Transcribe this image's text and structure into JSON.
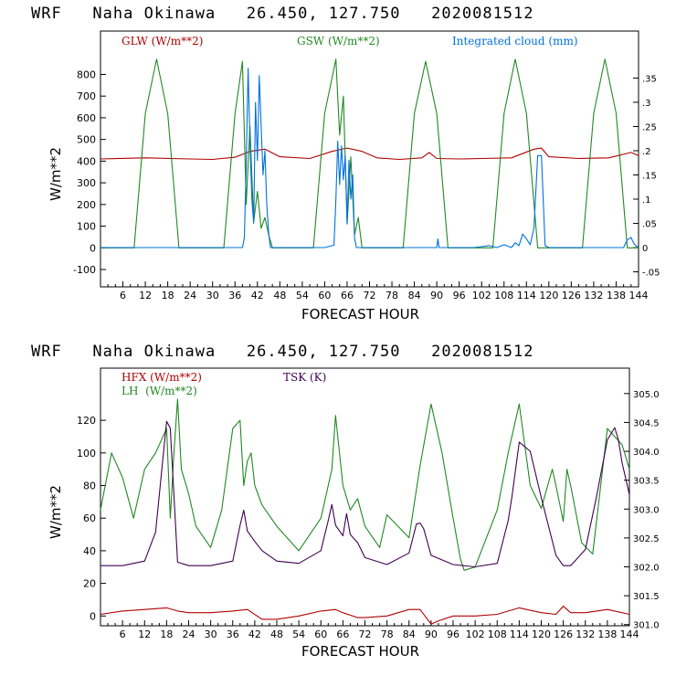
{
  "chart_data": [
    {
      "type": "line",
      "title": "WRF   Naha Okinawa   26.450, 127.750   2020081512",
      "xlabel": "FORECAST HOUR",
      "ylabel": "W/m**2",
      "xlim": [
        0,
        144
      ],
      "ylim": [
        -180,
        1000
      ],
      "y2lim": [
        -0.081,
        0.447
      ],
      "x_ticks": [
        6,
        12,
        18,
        24,
        30,
        36,
        42,
        48,
        54,
        60,
        66,
        72,
        78,
        84,
        90,
        96,
        102,
        108,
        114,
        120,
        126,
        132,
        138,
        144
      ],
      "y_ticks": [
        -100,
        0,
        100,
        200,
        300,
        400,
        500,
        600,
        700,
        800
      ],
      "y2_ticks": [
        -0.05,
        0,
        0.05,
        0.1,
        0.15,
        0.2,
        0.25,
        0.3,
        0.35
      ],
      "y2_tick_labels": [
        "-.05",
        "0",
        ".05",
        ".1",
        ".15",
        ".2",
        ".25",
        ".3",
        ".35"
      ],
      "series": [
        {
          "name": "GLW (W/m**2)",
          "color": "#b00000",
          "axis": "left",
          "x": [
            0,
            12,
            24,
            30,
            36,
            40,
            44,
            48,
            56,
            62,
            66,
            70,
            74,
            80,
            86,
            88,
            90,
            96,
            102,
            110,
            116,
            118,
            120,
            128,
            136,
            142,
            144
          ],
          "y": [
            410,
            415,
            410,
            408,
            418,
            445,
            455,
            420,
            412,
            445,
            460,
            445,
            415,
            408,
            415,
            440,
            412,
            410,
            412,
            415,
            455,
            460,
            420,
            412,
            415,
            440,
            425
          ]
        },
        {
          "name": "GSW (W/m**2)",
          "color": "#228822",
          "axis": "left",
          "x": [
            0,
            9,
            12,
            15,
            18,
            21,
            22,
            33,
            36,
            38,
            39,
            40,
            41,
            42,
            43,
            44,
            45,
            46,
            57,
            60,
            63,
            64,
            65,
            66,
            67,
            68,
            69,
            70,
            81,
            84,
            87,
            90,
            93,
            94,
            105,
            108,
            111,
            114,
            117,
            118,
            129,
            132,
            135,
            138,
            141,
            142,
            144
          ],
          "y": [
            0,
            0,
            620,
            870,
            620,
            0,
            0,
            0,
            620,
            860,
            200,
            560,
            120,
            260,
            90,
            140,
            60,
            0,
            0,
            620,
            870,
            520,
            700,
            110,
            420,
            60,
            140,
            0,
            0,
            620,
            860,
            620,
            0,
            0,
            0,
            620,
            870,
            620,
            0,
            0,
            0,
            620,
            870,
            620,
            0,
            0,
            0
          ]
        },
        {
          "name": "Integrated cloud (mm)",
          "color": "#0070dd",
          "axis": "right",
          "x": [
            0,
            38,
            38.5,
            39,
            39.5,
            40,
            40.5,
            41,
            41.5,
            42,
            42.5,
            43,
            43.5,
            44,
            44.5,
            45,
            45.5,
            60,
            62.5,
            63,
            63.5,
            64,
            64.5,
            65,
            65.5,
            66,
            66.5,
            67,
            67.5,
            68,
            68.5,
            90,
            90.3,
            90.6,
            100,
            104,
            106,
            108,
            110,
            111,
            112,
            113,
            114,
            115,
            116,
            117,
            118,
            119,
            120,
            140,
            141,
            142,
            142.5,
            143,
            144
          ],
          "y": [
            0,
            0,
            0.02,
            0.17,
            0.37,
            0.22,
            0.1,
            0.05,
            0.3,
            0.18,
            0.355,
            0.25,
            0.15,
            0.2,
            0.09,
            0.03,
            0,
            0,
            0.005,
            0.1,
            0.22,
            0.13,
            0.21,
            0.14,
            0.19,
            0.05,
            0.18,
            0.1,
            0.15,
            0.02,
            0,
            0,
            0.018,
            0,
            0,
            0.004,
            0,
            0.006,
            0,
            0.01,
            0.004,
            0.028,
            0.018,
            0.006,
            0.04,
            0.19,
            0.19,
            0.004,
            0,
            0,
            0.016,
            0.021,
            0.012,
            0.006,
            0
          ]
        }
      ],
      "legend": "top"
    },
    {
      "type": "line",
      "title": "WRF   Naha Okinawa   26.450, 127.750   2020081512",
      "xlabel": "FORECAST HOUR",
      "ylabel": "W/m**2",
      "xlim": [
        0,
        144
      ],
      "ylim": [
        -6,
        152
      ],
      "y2lim": [
        300.98,
        305.44
      ],
      "x_ticks": [
        6,
        12,
        18,
        24,
        30,
        36,
        42,
        48,
        54,
        60,
        66,
        72,
        78,
        84,
        90,
        96,
        102,
        108,
        114,
        120,
        126,
        132,
        138,
        144
      ],
      "y_ticks": [
        0,
        20,
        40,
        60,
        80,
        100,
        120
      ],
      "y2_ticks": [
        301.0,
        301.5,
        302.0,
        302.5,
        303.0,
        303.5,
        304.0,
        304.5,
        305.0
      ],
      "y2_tick_labels": [
        "301.0",
        "301.5",
        "302.0",
        "302.5",
        "303.0",
        "303.5",
        "304.0",
        "304.5",
        "305.0"
      ],
      "series": [
        {
          "name": "HFX (W/m**2)",
          "color": "#b00000",
          "axis": "left",
          "x": [
            0,
            6,
            12,
            18,
            21,
            24,
            30,
            36,
            40,
            44,
            48,
            54,
            60,
            64,
            66,
            70,
            72,
            78,
            84,
            87,
            90,
            92,
            96,
            102,
            108,
            114,
            118,
            120,
            124,
            126,
            128,
            132,
            138,
            144
          ],
          "y": [
            1,
            3,
            4,
            5,
            3,
            2,
            2,
            3,
            4,
            -2,
            -2,
            0,
            3,
            4,
            2,
            -1,
            -1,
            0,
            4,
            4,
            -5,
            -3,
            0,
            0,
            1,
            5,
            3,
            2,
            1,
            6,
            2,
            2,
            4,
            1
          ]
        },
        {
          "name": "LH  (W/m**2)",
          "color": "#228822",
          "axis": "left",
          "x": [
            0,
            3,
            6,
            9,
            12,
            15,
            18,
            19,
            20,
            21,
            22,
            24,
            26,
            30,
            33,
            36,
            38,
            39,
            40,
            41,
            42,
            44,
            48,
            54,
            57,
            60,
            63,
            64,
            66,
            68,
            70,
            72,
            76,
            78,
            84,
            87,
            90,
            93,
            96,
            98,
            99,
            102,
            108,
            111,
            114,
            117,
            120,
            123,
            124,
            126,
            127,
            128,
            131,
            134,
            138,
            142,
            144
          ],
          "y": [
            65,
            100,
            85,
            60,
            90,
            100,
            115,
            60,
            100,
            133,
            90,
            75,
            55,
            42,
            65,
            115,
            120,
            80,
            95,
            100,
            80,
            68,
            55,
            40,
            50,
            60,
            90,
            123,
            80,
            65,
            72,
            55,
            42,
            62,
            48,
            92,
            130,
            100,
            60,
            35,
            28,
            30,
            65,
            100,
            130,
            80,
            66,
            90,
            80,
            58,
            90,
            80,
            45,
            38,
            115,
            105,
            90
          ]
        },
        {
          "name": "TSK (K)",
          "color": "#400050",
          "axis": "right",
          "x": [
            0,
            6,
            12,
            15,
            18,
            19,
            21,
            24,
            30,
            36,
            38,
            39,
            40,
            42,
            44,
            48,
            54,
            60,
            62,
            63,
            64,
            66,
            67,
            68,
            70,
            72,
            78,
            84,
            86,
            87,
            88,
            90,
            96,
            102,
            108,
            111,
            112,
            114,
            117,
            120,
            124,
            126,
            128,
            132,
            135,
            138,
            140,
            141,
            142,
            144
          ],
          "y": [
            302.02,
            302.02,
            302.1,
            302.6,
            304.52,
            304.4,
            302.08,
            302.02,
            302.02,
            302.1,
            302.72,
            302.98,
            302.62,
            302.44,
            302.28,
            302.1,
            302.06,
            302.28,
            302.8,
            303.08,
            302.72,
            302.54,
            302.92,
            302.56,
            302.42,
            302.16,
            302.04,
            302.24,
            302.74,
            302.76,
            302.66,
            302.2,
            302.04,
            302.0,
            302.06,
            302.8,
            303.2,
            304.16,
            304.0,
            303.2,
            302.2,
            302.02,
            302.02,
            302.3,
            303.2,
            304.2,
            304.41,
            304.2,
            303.8,
            303.25
          ]
        }
      ],
      "legend": "top"
    }
  ]
}
